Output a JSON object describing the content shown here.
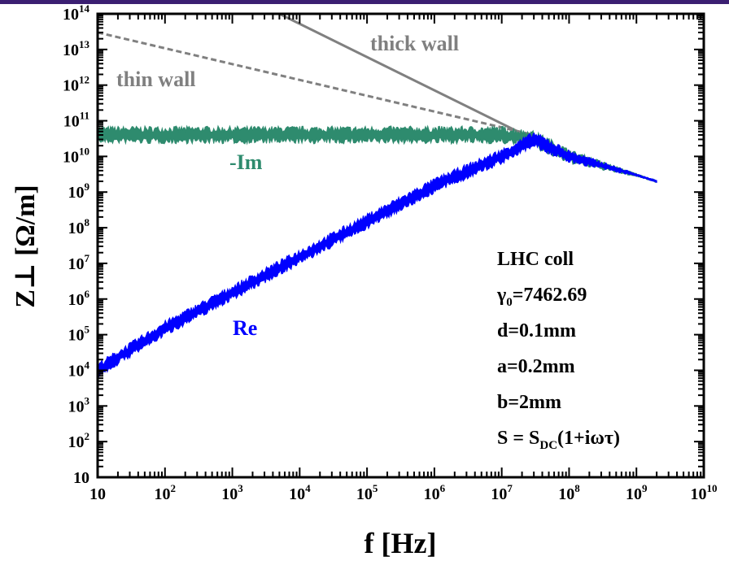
{
  "chart_data": {
    "type": "line",
    "x_scale": "log",
    "y_scale": "log",
    "xlim": [
      10,
      10000000000
    ],
    "ylim": [
      10,
      100000000000000
    ],
    "xlabel": "f [Hz]",
    "ylabel": "Z⊥ [Ω/m]",
    "x_ticks": [
      {
        "base": "10",
        "exp": ""
      },
      {
        "base": "10",
        "exp": "2"
      },
      {
        "base": "10",
        "exp": "3"
      },
      {
        "base": "10",
        "exp": "4"
      },
      {
        "base": "10",
        "exp": "5"
      },
      {
        "base": "10",
        "exp": "6"
      },
      {
        "base": "10",
        "exp": "7"
      },
      {
        "base": "10",
        "exp": "8"
      },
      {
        "base": "10",
        "exp": "9"
      },
      {
        "base": "10",
        "exp": "10"
      }
    ],
    "y_ticks": [
      {
        "base": "10",
        "exp": ""
      },
      {
        "base": "10",
        "exp": "2"
      },
      {
        "base": "10",
        "exp": "3"
      },
      {
        "base": "10",
        "exp": "4"
      },
      {
        "base": "10",
        "exp": "5"
      },
      {
        "base": "10",
        "exp": "6"
      },
      {
        "base": "10",
        "exp": "7"
      },
      {
        "base": "10",
        "exp": "8"
      },
      {
        "base": "10",
        "exp": "9"
      },
      {
        "base": "10",
        "exp": "10"
      },
      {
        "base": "10",
        "exp": "11"
      },
      {
        "base": "10",
        "exp": "12"
      },
      {
        "base": "10",
        "exp": "13"
      },
      {
        "base": "10",
        "exp": "14"
      }
    ],
    "series": [
      {
        "name": "Re",
        "color": "#0000ff",
        "style": "noisy-band",
        "x": [
          10,
          100,
          1000,
          10000,
          100000,
          1000000,
          10000000,
          30000000,
          100000000,
          1000000000,
          2000000000
        ],
        "y": [
          10000,
          150000,
          1500000,
          15000000,
          150000000,
          1500000000,
          10000000000,
          30000000000,
          10000000000,
          3000000000,
          2000000000
        ]
      },
      {
        "name": "-Im",
        "color": "#2e8b6e",
        "style": "noisy-band",
        "x": [
          10,
          1000000,
          10000000,
          30000000,
          100000000,
          1000000000,
          2000000000
        ],
        "y": [
          40000000000,
          40000000000,
          40000000000,
          30000000000,
          10000000000,
          3000000000,
          2000000000
        ]
      },
      {
        "name": "thin wall",
        "color": "#808080",
        "style": "dashed",
        "x": [
          10,
          30000000
        ],
        "y": [
          30000000000000,
          40000000000
        ]
      },
      {
        "name": "thick wall",
        "color": "#808080",
        "style": "solid",
        "x": [
          5000,
          30000000
        ],
        "y": [
          100000000000000,
          30000000000
        ]
      }
    ],
    "annotations": [
      {
        "text": "thick wall",
        "color": "#808080"
      },
      {
        "text": "thin wall",
        "color": "#808080"
      },
      {
        "text": "-Im",
        "color": "#2e8b6e"
      },
      {
        "text": "Re",
        "color": "#0000ff"
      }
    ],
    "parameters": {
      "line1": "LHC coll",
      "gamma_sym": "γ",
      "gamma_sub": "0",
      "gamma_val": "=7462.69",
      "d": "d=0.1mm",
      "a": "a=0.2mm",
      "b": "b=2mm",
      "s_prefix": "S = S",
      "s_sub": "DC",
      "s_suffix": "(1+iωτ)"
    }
  }
}
